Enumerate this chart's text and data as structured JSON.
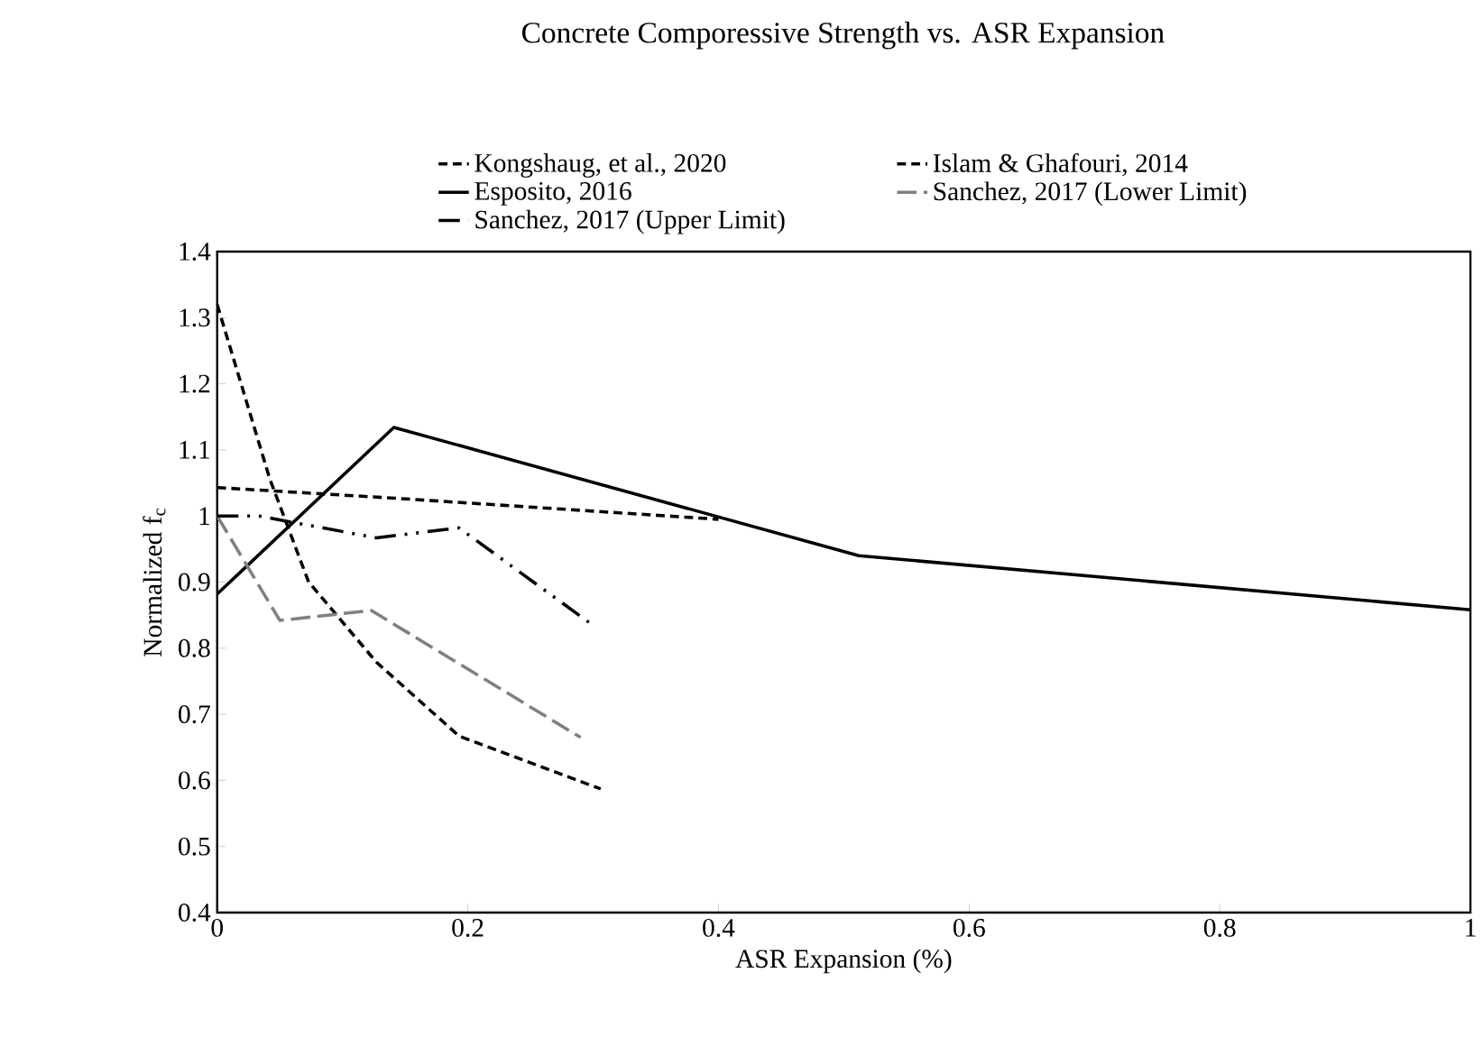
{
  "chart_data": {
    "type": "line",
    "title": "Concrete Comporessive Strength vs. ASR Expansion",
    "xlabel": "ASR Expansion (%)",
    "ylabel": "Normalized f$_{c}$",
    "xlim": [
      0,
      1
    ],
    "ylim": [
      0.4,
      1.4
    ],
    "xticks": [
      0,
      0.2,
      0.4,
      0.6,
      0.8,
      1
    ],
    "yticks": [
      0.4,
      0.5,
      0.6,
      0.7,
      0.8,
      0.9,
      1,
      1.1,
      1.2,
      1.3,
      1.4
    ],
    "grid": false,
    "legend": "top",
    "marker": "none",
    "series": [
      {
        "name": "Kongshaug, et al., 2020",
        "color": "#000000",
        "line_style": "dashed",
        "x": [
          0,
          0.042,
          0.073,
          0.127,
          0.193,
          0.306
        ],
        "values": [
          1.32,
          1.056,
          0.9,
          0.779,
          0.667,
          0.587
        ]
      },
      {
        "name": "Islam & Ghafouri, 2014",
        "color": "#000000",
        "line_style": "dashed",
        "x": [
          0,
          0.141,
          0.4
        ],
        "values": [
          1.043,
          1.027,
          0.995
        ]
      },
      {
        "name": "Esposito, 2016",
        "color": "#000000",
        "line_style": "solid",
        "x": [
          0,
          0.141,
          0.512,
          1
        ],
        "values": [
          0.882,
          1.134,
          0.94,
          0.858
        ]
      },
      {
        "name": "Sanchez, 2017 (Lower Limit)",
        "color": "#808080",
        "line_style": "dashed",
        "x": [
          0,
          0.05,
          0.123,
          0.29
        ],
        "values": [
          1.0,
          0.842,
          0.857,
          0.665
        ]
      },
      {
        "name": "Sanchez, 2017 (Upper Limit)",
        "color": "#000000",
        "line_style": "dashdot",
        "x": [
          0,
          0.033,
          0.127,
          0.193,
          0.301
        ],
        "values": [
          1.0,
          1.0,
          0.967,
          0.982,
          0.833
        ]
      }
    ]
  }
}
